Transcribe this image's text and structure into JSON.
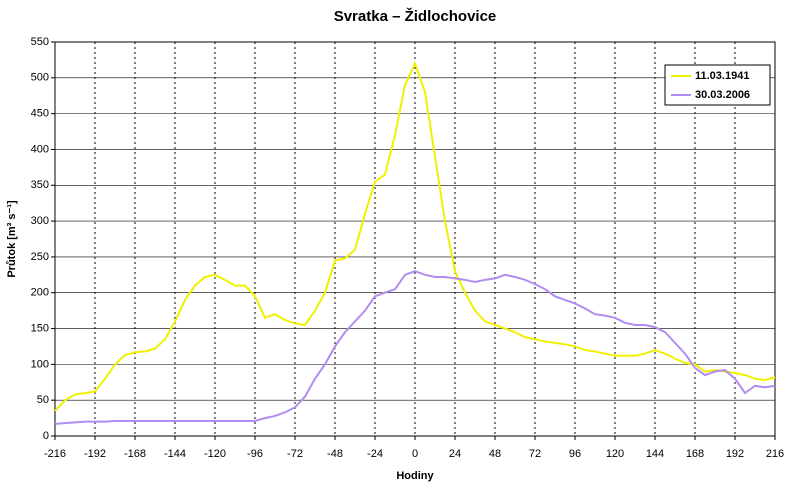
{
  "chart_data": {
    "type": "line",
    "title": "Svratka – Židlochovice",
    "xlabel": "Hodiny",
    "ylabel": "Průtok [m³ s⁻¹]",
    "x": [
      -216,
      -210,
      -204,
      -198,
      -192,
      -186,
      -180,
      -174,
      -168,
      -162,
      -156,
      -150,
      -144,
      -138,
      -132,
      -126,
      -120,
      -114,
      -108,
      -102,
      -96,
      -90,
      -84,
      -78,
      -72,
      -66,
      -60,
      -54,
      -48,
      -42,
      -36,
      -30,
      -24,
      -18,
      -12,
      -6,
      0,
      6,
      12,
      18,
      24,
      30,
      36,
      42,
      48,
      54,
      60,
      66,
      72,
      78,
      84,
      90,
      96,
      102,
      108,
      114,
      120,
      126,
      132,
      138,
      144,
      150,
      156,
      162,
      168,
      174,
      180,
      186,
      192,
      198,
      204,
      210,
      216
    ],
    "series": [
      {
        "name": "11.03.1941",
        "color": "#f0f000",
        "values": [
          35,
          50,
          58,
          60,
          62,
          80,
          100,
          113,
          117,
          118,
          122,
          135,
          160,
          190,
          210,
          222,
          225,
          218,
          210,
          210,
          195,
          165,
          170,
          162,
          157,
          155,
          175,
          200,
          245,
          248,
          260,
          310,
          355,
          365,
          420,
          490,
          520,
          480,
          390,
          300,
          230,
          200,
          175,
          160,
          155,
          150,
          145,
          138,
          135,
          132,
          130,
          128,
          125,
          120,
          118,
          115,
          112,
          112,
          112,
          115,
          120,
          115,
          108,
          102,
          100,
          90,
          92,
          90,
          88,
          85,
          80,
          78,
          82
        ]
      },
      {
        "name": "30.03.2006",
        "color": "#b38cf0",
        "values": [
          17,
          18,
          19,
          20,
          20,
          20,
          21,
          21,
          21,
          21,
          21,
          21,
          21,
          21,
          21,
          21,
          21,
          21,
          21,
          21,
          21,
          25,
          28,
          33,
          40,
          55,
          80,
          100,
          125,
          145,
          160,
          175,
          195,
          200,
          205,
          225,
          230,
          225,
          222,
          222,
          220,
          218,
          215,
          218,
          220,
          225,
          222,
          218,
          212,
          205,
          195,
          190,
          185,
          178,
          170,
          168,
          165,
          158,
          155,
          155,
          152,
          145,
          130,
          115,
          95,
          85,
          90,
          92,
          80,
          60,
          70,
          68,
          70
        ]
      }
    ],
    "xlim": [
      -216,
      216
    ],
    "xticks": [
      -216,
      -192,
      -168,
      -144,
      -120,
      -96,
      -72,
      -48,
      -24,
      0,
      24,
      48,
      72,
      96,
      120,
      144,
      168,
      192,
      216
    ],
    "ylim": [
      0,
      550
    ],
    "yticks": [
      0,
      50,
      100,
      150,
      200,
      250,
      300,
      350,
      400,
      450,
      500,
      550
    ],
    "grid": true,
    "legend": "top-right"
  }
}
